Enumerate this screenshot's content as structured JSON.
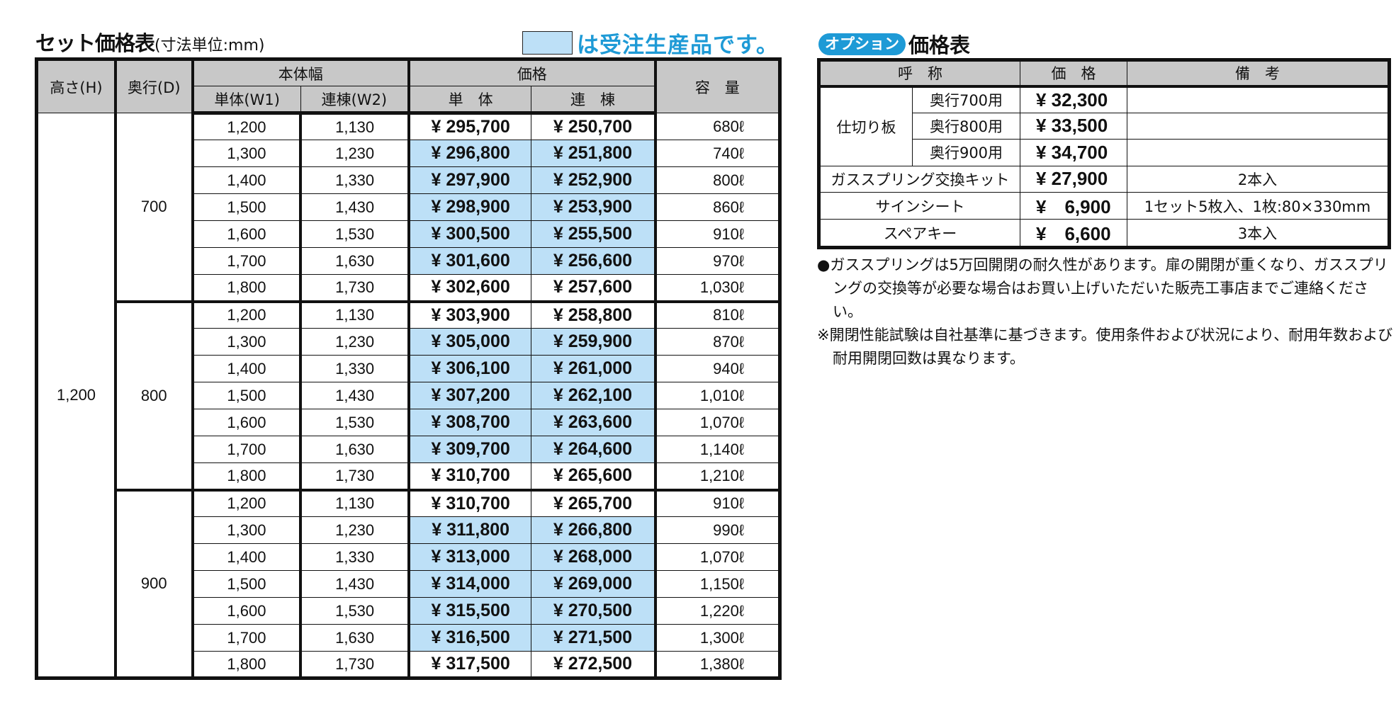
{
  "set_table": {
    "title": "セット価格表",
    "unit_note": "(寸法単位:mm)",
    "legend_text": "は受注生産品です。",
    "highlight_color": "#bde0f7",
    "headers": {
      "height": "高さ(H)",
      "depth": "奥行(D)",
      "body_width": "本体幅",
      "single_w1": "単体(W1)",
      "linked_w2": "連棟(W2)",
      "price": "価格",
      "single": "単　体",
      "linked": "連　棟",
      "capacity": "容　量"
    },
    "height_value": "1,200",
    "groups": [
      {
        "depth": "700",
        "rows": [
          {
            "w1": "1,200",
            "w2": "1,130",
            "single": "¥ 295,700",
            "linked": "¥ 250,700",
            "capacity": "680ℓ",
            "made_to_order": false
          },
          {
            "w1": "1,300",
            "w2": "1,230",
            "single": "¥ 296,800",
            "linked": "¥ 251,800",
            "capacity": "740ℓ",
            "made_to_order": true
          },
          {
            "w1": "1,400",
            "w2": "1,330",
            "single": "¥ 297,900",
            "linked": "¥ 252,900",
            "capacity": "800ℓ",
            "made_to_order": true
          },
          {
            "w1": "1,500",
            "w2": "1,430",
            "single": "¥ 298,900",
            "linked": "¥ 253,900",
            "capacity": "860ℓ",
            "made_to_order": true
          },
          {
            "w1": "1,600",
            "w2": "1,530",
            "single": "¥ 300,500",
            "linked": "¥ 255,500",
            "capacity": "910ℓ",
            "made_to_order": true
          },
          {
            "w1": "1,700",
            "w2": "1,630",
            "single": "¥ 301,600",
            "linked": "¥ 256,600",
            "capacity": "970ℓ",
            "made_to_order": true
          },
          {
            "w1": "1,800",
            "w2": "1,730",
            "single": "¥ 302,600",
            "linked": "¥ 257,600",
            "capacity": "1,030ℓ",
            "made_to_order": false
          }
        ]
      },
      {
        "depth": "800",
        "rows": [
          {
            "w1": "1,200",
            "w2": "1,130",
            "single": "¥ 303,900",
            "linked": "¥ 258,800",
            "capacity": "810ℓ",
            "made_to_order": false
          },
          {
            "w1": "1,300",
            "w2": "1,230",
            "single": "¥ 305,000",
            "linked": "¥ 259,900",
            "capacity": "870ℓ",
            "made_to_order": true
          },
          {
            "w1": "1,400",
            "w2": "1,330",
            "single": "¥ 306,100",
            "linked": "¥ 261,000",
            "capacity": "940ℓ",
            "made_to_order": true
          },
          {
            "w1": "1,500",
            "w2": "1,430",
            "single": "¥ 307,200",
            "linked": "¥ 262,100",
            "capacity": "1,010ℓ",
            "made_to_order": true
          },
          {
            "w1": "1,600",
            "w2": "1,530",
            "single": "¥ 308,700",
            "linked": "¥ 263,600",
            "capacity": "1,070ℓ",
            "made_to_order": true
          },
          {
            "w1": "1,700",
            "w2": "1,630",
            "single": "¥ 309,700",
            "linked": "¥ 264,600",
            "capacity": "1,140ℓ",
            "made_to_order": true
          },
          {
            "w1": "1,800",
            "w2": "1,730",
            "single": "¥ 310,700",
            "linked": "¥ 265,600",
            "capacity": "1,210ℓ",
            "made_to_order": false
          }
        ]
      },
      {
        "depth": "900",
        "rows": [
          {
            "w1": "1,200",
            "w2": "1,130",
            "single": "¥ 310,700",
            "linked": "¥ 265,700",
            "capacity": "910ℓ",
            "made_to_order": false
          },
          {
            "w1": "1,300",
            "w2": "1,230",
            "single": "¥ 311,800",
            "linked": "¥ 266,800",
            "capacity": "990ℓ",
            "made_to_order": true
          },
          {
            "w1": "1,400",
            "w2": "1,330",
            "single": "¥ 313,000",
            "linked": "¥ 268,000",
            "capacity": "1,070ℓ",
            "made_to_order": true
          },
          {
            "w1": "1,500",
            "w2": "1,430",
            "single": "¥ 314,000",
            "linked": "¥ 269,000",
            "capacity": "1,150ℓ",
            "made_to_order": true
          },
          {
            "w1": "1,600",
            "w2": "1,530",
            "single": "¥ 315,500",
            "linked": "¥ 270,500",
            "capacity": "1,220ℓ",
            "made_to_order": true
          },
          {
            "w1": "1,700",
            "w2": "1,630",
            "single": "¥ 316,500",
            "linked": "¥ 271,500",
            "capacity": "1,300ℓ",
            "made_to_order": true
          },
          {
            "w1": "1,800",
            "w2": "1,730",
            "single": "¥ 317,500",
            "linked": "¥ 272,500",
            "capacity": "1,380ℓ",
            "made_to_order": false
          }
        ]
      }
    ]
  },
  "option_table": {
    "badge": "オプション",
    "title": "価格表",
    "badge_color": "#1e9ad6",
    "headers": {
      "name": "呼　称",
      "price": "価　格",
      "remarks": "備　考"
    },
    "partition": {
      "label": "仕切り板",
      "rows": [
        {
          "name": "奥行700用",
          "price": "¥ 32,300",
          "remarks": ""
        },
        {
          "name": "奥行800用",
          "price": "¥ 33,500",
          "remarks": ""
        },
        {
          "name": "奥行900用",
          "price": "¥ 34,700",
          "remarks": ""
        }
      ]
    },
    "rows": [
      {
        "name": "ガススプリング交換キット",
        "price": "¥ 27,900",
        "remarks": "2本入"
      },
      {
        "name": "サインシート",
        "price": "¥　6,900",
        "remarks": "1セット5枚入、1枚:80×330mm"
      },
      {
        "name": "スペアキー",
        "price": "¥　6,600",
        "remarks": "3本入"
      }
    ]
  },
  "notes": [
    "●ガススプリングは5万回開閉の耐久性があります。扉の開閉が重くなり、ガススプリングの交換等が必要な場合はお買い上げいただいた販売工事店までご連絡ください。",
    "※開閉性能試験は自社基準に基づきます。使用条件および状況により、耐用年数および耐用開閉回数は異なります。"
  ]
}
